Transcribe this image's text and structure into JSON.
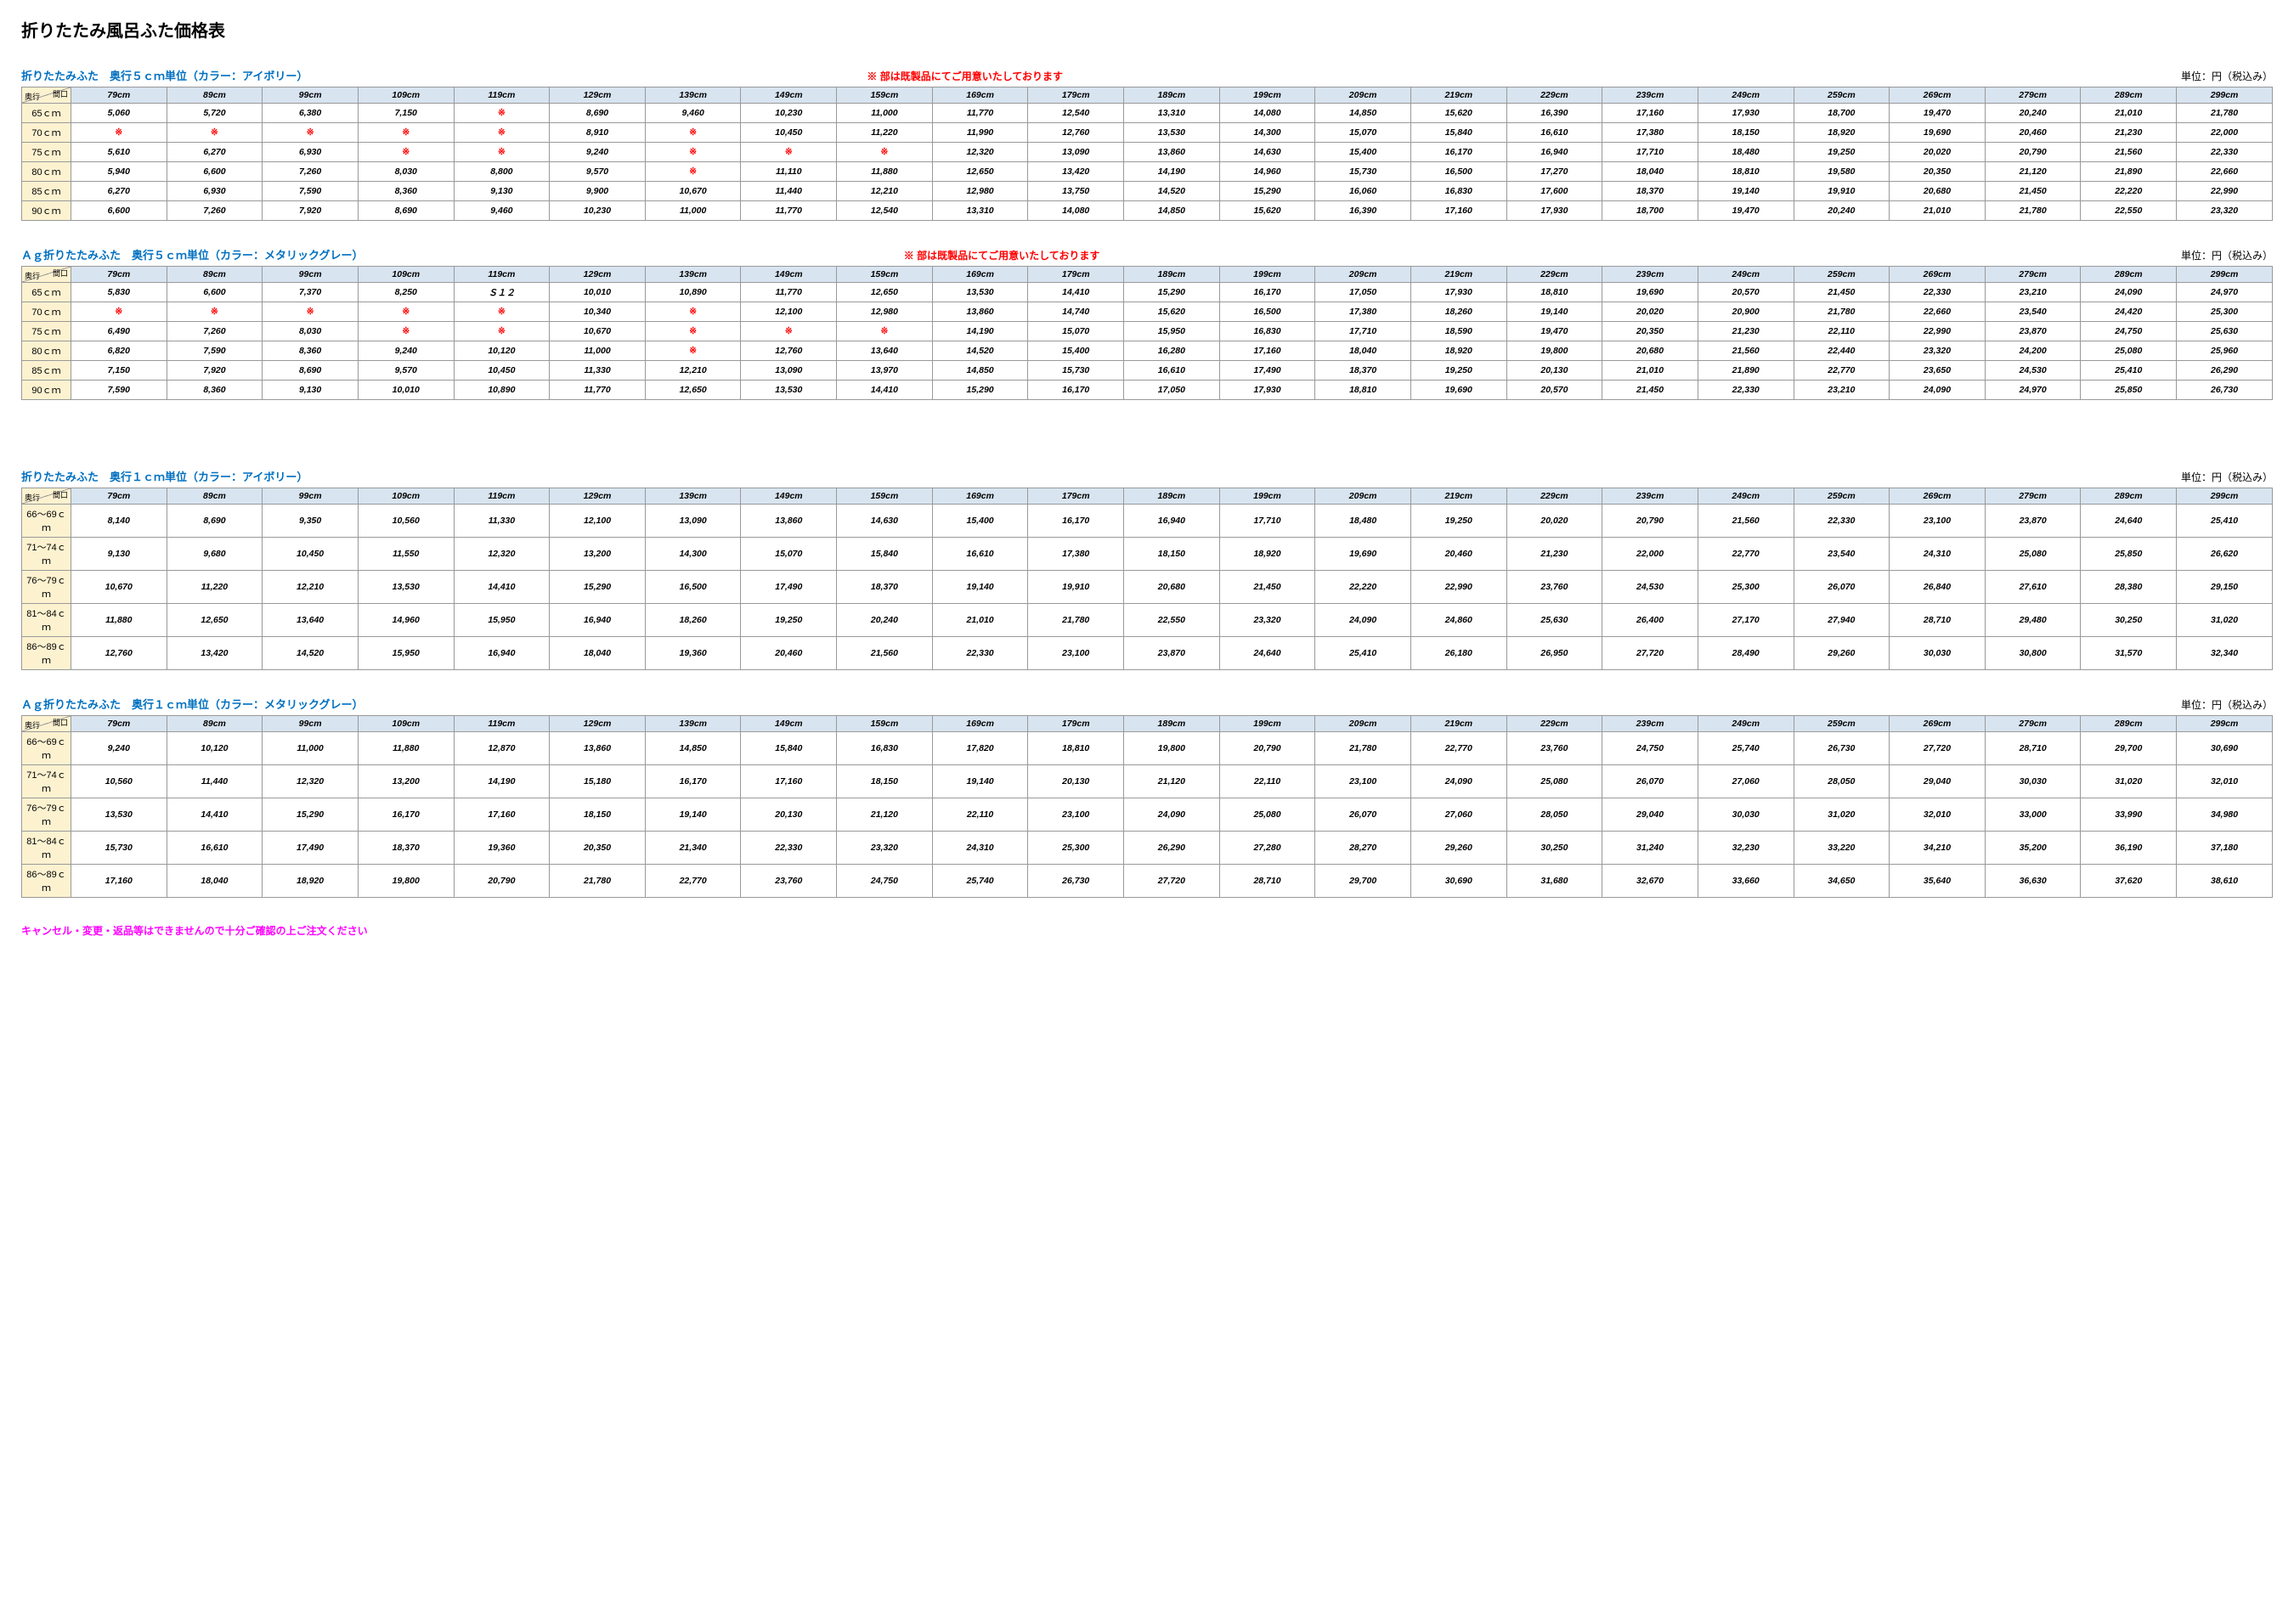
{
  "pageTitle": "折りたたみ風呂ふた価格表",
  "unitLabel": "単位：円（税込み）",
  "cornerTop": "間口",
  "cornerBottom": "奥行",
  "markSymbol": "※",
  "footerNote": "キャンセル・変更・返品等はできませんので十分ご確認の上ご注文ください",
  "colHeaders": [
    "79cm",
    "89cm",
    "99cm",
    "109cm",
    "119cm",
    "129cm",
    "139cm",
    "149cm",
    "159cm",
    "169cm",
    "179cm",
    "189cm",
    "199cm",
    "209cm",
    "219cm",
    "229cm",
    "239cm",
    "249cm",
    "259cm",
    "269cm",
    "279cm",
    "289cm",
    "299cm"
  ],
  "tables": [
    {
      "title": "折りたたみふた　奥行５ｃｍ単位（カラー：アイボリー）",
      "note": "※ 部は既製品にてご用意いたしております",
      "rowHeaders": [
        "65ｃｍ",
        "70ｃｍ",
        "75ｃｍ",
        "80ｃｍ",
        "85ｃｍ",
        "90ｃｍ"
      ],
      "rows": [
        [
          "5,060",
          "5,720",
          "6,380",
          "7,150",
          "※",
          "8,690",
          "9,460",
          "10,230",
          "11,000",
          "11,770",
          "12,540",
          "13,310",
          "14,080",
          "14,850",
          "15,620",
          "16,390",
          "17,160",
          "17,930",
          "18,700",
          "19,470",
          "20,240",
          "21,010",
          "21,780"
        ],
        [
          "※",
          "※",
          "※",
          "※",
          "※",
          "8,910",
          "※",
          "10,450",
          "11,220",
          "11,990",
          "12,760",
          "13,530",
          "14,300",
          "15,070",
          "15,840",
          "16,610",
          "17,380",
          "18,150",
          "18,920",
          "19,690",
          "20,460",
          "21,230",
          "22,000"
        ],
        [
          "5,610",
          "6,270",
          "6,930",
          "※",
          "※",
          "9,240",
          "※",
          "※",
          "※",
          "12,320",
          "13,090",
          "13,860",
          "14,630",
          "15,400",
          "16,170",
          "16,940",
          "17,710",
          "18,480",
          "19,250",
          "20,020",
          "20,790",
          "21,560",
          "22,330"
        ],
        [
          "5,940",
          "6,600",
          "7,260",
          "8,030",
          "8,800",
          "9,570",
          "※",
          "11,110",
          "11,880",
          "12,650",
          "13,420",
          "14,190",
          "14,960",
          "15,730",
          "16,500",
          "17,270",
          "18,040",
          "18,810",
          "19,580",
          "20,350",
          "21,120",
          "21,890",
          "22,660"
        ],
        [
          "6,270",
          "6,930",
          "7,590",
          "8,360",
          "9,130",
          "9,900",
          "10,670",
          "11,440",
          "12,210",
          "12,980",
          "13,750",
          "14,520",
          "15,290",
          "16,060",
          "16,830",
          "17,600",
          "18,370",
          "19,140",
          "19,910",
          "20,680",
          "21,450",
          "22,220",
          "22,990"
        ],
        [
          "6,600",
          "7,260",
          "7,920",
          "8,690",
          "9,460",
          "10,230",
          "11,000",
          "11,770",
          "12,540",
          "13,310",
          "14,080",
          "14,850",
          "15,620",
          "16,390",
          "17,160",
          "17,930",
          "18,700",
          "19,470",
          "20,240",
          "21,010",
          "21,780",
          "22,550",
          "23,320"
        ]
      ]
    },
    {
      "title": "Ａｇ折りたたみふた　奥行５ｃｍ単位（カラー：メタリックグレー）",
      "note": "※ 部は既製品にてご用意いたしております",
      "rowHeaders": [
        "65ｃｍ",
        "70ｃｍ",
        "75ｃｍ",
        "80ｃｍ",
        "85ｃｍ",
        "90ｃｍ"
      ],
      "rows": [
        [
          "5,830",
          "6,600",
          "7,370",
          "8,250",
          "Ｓ１２",
          "10,010",
          "10,890",
          "11,770",
          "12,650",
          "13,530",
          "14,410",
          "15,290",
          "16,170",
          "17,050",
          "17,930",
          "18,810",
          "19,690",
          "20,570",
          "21,450",
          "22,330",
          "23,210",
          "24,090",
          "24,970"
        ],
        [
          "※",
          "※",
          "※",
          "※",
          "※",
          "10,340",
          "※",
          "12,100",
          "12,980",
          "13,860",
          "14,740",
          "15,620",
          "16,500",
          "17,380",
          "18,260",
          "19,140",
          "20,020",
          "20,900",
          "21,780",
          "22,660",
          "23,540",
          "24,420",
          "25,300"
        ],
        [
          "6,490",
          "7,260",
          "8,030",
          "※",
          "※",
          "10,670",
          "※",
          "※",
          "※",
          "14,190",
          "15,070",
          "15,950",
          "16,830",
          "17,710",
          "18,590",
          "19,470",
          "20,350",
          "21,230",
          "22,110",
          "22,990",
          "23,870",
          "24,750",
          "25,630"
        ],
        [
          "6,820",
          "7,590",
          "8,360",
          "9,240",
          "10,120",
          "11,000",
          "※",
          "12,760",
          "13,640",
          "14,520",
          "15,400",
          "16,280",
          "17,160",
          "18,040",
          "18,920",
          "19,800",
          "20,680",
          "21,560",
          "22,440",
          "23,320",
          "24,200",
          "25,080",
          "25,960"
        ],
        [
          "7,150",
          "7,920",
          "8,690",
          "9,570",
          "10,450",
          "11,330",
          "12,210",
          "13,090",
          "13,970",
          "14,850",
          "15,730",
          "16,610",
          "17,490",
          "18,370",
          "19,250",
          "20,130",
          "21,010",
          "21,890",
          "22,770",
          "23,650",
          "24,530",
          "25,410",
          "26,290"
        ],
        [
          "7,590",
          "8,360",
          "9,130",
          "10,010",
          "10,890",
          "11,770",
          "12,650",
          "13,530",
          "14,410",
          "15,290",
          "16,170",
          "17,050",
          "17,930",
          "18,810",
          "19,690",
          "20,570",
          "21,450",
          "22,330",
          "23,210",
          "24,090",
          "24,970",
          "25,850",
          "26,730"
        ]
      ]
    },
    {
      "title": "折りたたみふた　奥行１ｃｍ単位（カラー：アイボリー）",
      "note": "",
      "rowHeaders": [
        "66～69ｃｍ",
        "71～74ｃｍ",
        "76～79ｃｍ",
        "81～84ｃｍ",
        "86～89ｃｍ"
      ],
      "rows": [
        [
          "8,140",
          "8,690",
          "9,350",
          "10,560",
          "11,330",
          "12,100",
          "13,090",
          "13,860",
          "14,630",
          "15,400",
          "16,170",
          "16,940",
          "17,710",
          "18,480",
          "19,250",
          "20,020",
          "20,790",
          "21,560",
          "22,330",
          "23,100",
          "23,870",
          "24,640",
          "25,410"
        ],
        [
          "9,130",
          "9,680",
          "10,450",
          "11,550",
          "12,320",
          "13,200",
          "14,300",
          "15,070",
          "15,840",
          "16,610",
          "17,380",
          "18,150",
          "18,920",
          "19,690",
          "20,460",
          "21,230",
          "22,000",
          "22,770",
          "23,540",
          "24,310",
          "25,080",
          "25,850",
          "26,620"
        ],
        [
          "10,670",
          "11,220",
          "12,210",
          "13,530",
          "14,410",
          "15,290",
          "16,500",
          "17,490",
          "18,370",
          "19,140",
          "19,910",
          "20,680",
          "21,450",
          "22,220",
          "22,990",
          "23,760",
          "24,530",
          "25,300",
          "26,070",
          "26,840",
          "27,610",
          "28,380",
          "29,150"
        ],
        [
          "11,880",
          "12,650",
          "13,640",
          "14,960",
          "15,950",
          "16,940",
          "18,260",
          "19,250",
          "20,240",
          "21,010",
          "21,780",
          "22,550",
          "23,320",
          "24,090",
          "24,860",
          "25,630",
          "26,400",
          "27,170",
          "27,940",
          "28,710",
          "29,480",
          "30,250",
          "31,020"
        ],
        [
          "12,760",
          "13,420",
          "14,520",
          "15,950",
          "16,940",
          "18,040",
          "19,360",
          "20,460",
          "21,560",
          "22,330",
          "23,100",
          "23,870",
          "24,640",
          "25,410",
          "26,180",
          "26,950",
          "27,720",
          "28,490",
          "29,260",
          "30,030",
          "30,800",
          "31,570",
          "32,340"
        ]
      ]
    },
    {
      "title": "Ａｇ折りたたみふた　奥行１ｃｍ単位（カラー：メタリックグレー）",
      "note": "",
      "rowHeaders": [
        "66～69ｃｍ",
        "71～74ｃｍ",
        "76～79ｃｍ",
        "81～84ｃｍ",
        "86～89ｃｍ"
      ],
      "rows": [
        [
          "9,240",
          "10,120",
          "11,000",
          "11,880",
          "12,870",
          "13,860",
          "14,850",
          "15,840",
          "16,830",
          "17,820",
          "18,810",
          "19,800",
          "20,790",
          "21,780",
          "22,770",
          "23,760",
          "24,750",
          "25,740",
          "26,730",
          "27,720",
          "28,710",
          "29,700",
          "30,690"
        ],
        [
          "10,560",
          "11,440",
          "12,320",
          "13,200",
          "14,190",
          "15,180",
          "16,170",
          "17,160",
          "18,150",
          "19,140",
          "20,130",
          "21,120",
          "22,110",
          "23,100",
          "24,090",
          "25,080",
          "26,070",
          "27,060",
          "28,050",
          "29,040",
          "30,030",
          "31,020",
          "32,010"
        ],
        [
          "13,530",
          "14,410",
          "15,290",
          "16,170",
          "17,160",
          "18,150",
          "19,140",
          "20,130",
          "21,120",
          "22,110",
          "23,100",
          "24,090",
          "25,080",
          "26,070",
          "27,060",
          "28,050",
          "29,040",
          "30,030",
          "31,020",
          "32,010",
          "33,000",
          "33,990",
          "34,980"
        ],
        [
          "15,730",
          "16,610",
          "17,490",
          "18,370",
          "19,360",
          "20,350",
          "21,340",
          "22,330",
          "23,320",
          "24,310",
          "25,300",
          "26,290",
          "27,280",
          "28,270",
          "29,260",
          "30,250",
          "31,240",
          "32,230",
          "33,220",
          "34,210",
          "35,200",
          "36,190",
          "37,180"
        ],
        [
          "17,160",
          "18,040",
          "18,920",
          "19,800",
          "20,790",
          "21,780",
          "22,770",
          "23,760",
          "24,750",
          "25,740",
          "26,730",
          "27,720",
          "28,710",
          "29,700",
          "30,690",
          "31,680",
          "32,670",
          "33,660",
          "34,650",
          "35,640",
          "36,630",
          "37,620",
          "38,610"
        ]
      ]
    }
  ]
}
